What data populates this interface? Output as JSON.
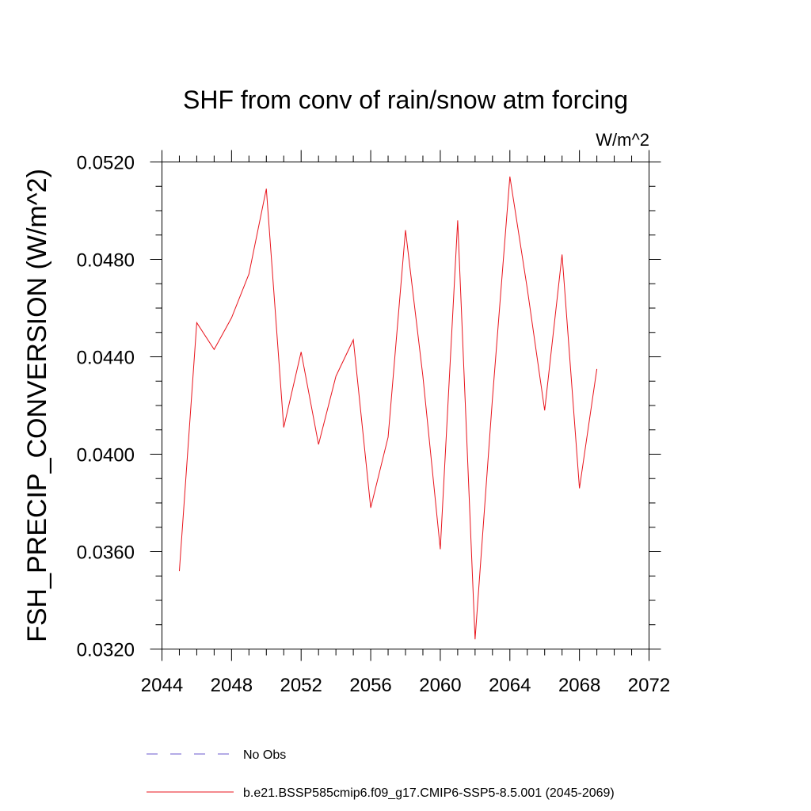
{
  "chart_data": {
    "type": "line",
    "title": "SHF from conv of rain/snow atm forcing",
    "units_label": "W/m^2",
    "xlabel": "",
    "ylabel": "FSH_PRECIP_CONVERSION  (W/m^2)",
    "xlim": [
      2044,
      2072
    ],
    "ylim": [
      0.032,
      0.052
    ],
    "x_ticks": [
      "2044",
      "2048",
      "2052",
      "2056",
      "2060",
      "2064",
      "2068",
      "2072"
    ],
    "y_ticks": [
      "0.0320",
      "0.0360",
      "0.0400",
      "0.0440",
      "0.0480",
      "0.0520"
    ],
    "grid": false,
    "legend_placement": "bottom",
    "series": [
      {
        "name": "b.e21.BSSP585cmip6.f09_g17.CMIP6-SSP5-8.5.001 (2045-2069)",
        "color": "#e8141c",
        "style": "solid",
        "x": [
          2045,
          2046,
          2047,
          2048,
          2049,
          2050,
          2051,
          2052,
          2053,
          2054,
          2055,
          2056,
          2057,
          2058,
          2059,
          2060,
          2061,
          2062,
          2063,
          2064,
          2065,
          2066,
          2067,
          2068,
          2069
        ],
        "values": [
          0.0352,
          0.0454,
          0.0443,
          0.0456,
          0.0474,
          0.0509,
          0.0411,
          0.0442,
          0.0404,
          0.0432,
          0.0447,
          0.0378,
          0.0407,
          0.0492,
          0.0432,
          0.0361,
          0.0496,
          0.0324,
          0.0423,
          0.0514,
          0.0468,
          0.0418,
          0.0482,
          0.0386,
          0.0435
        ]
      }
    ],
    "legend": [
      {
        "name": "No Obs",
        "color": "#6a5acd",
        "style": "dashed"
      },
      {
        "name": "b.e21.BSSP585cmip6.f09_g17.CMIP6-SSP5-8.5.001 (2045-2069)",
        "color": "#e8141c",
        "style": "solid"
      }
    ]
  }
}
